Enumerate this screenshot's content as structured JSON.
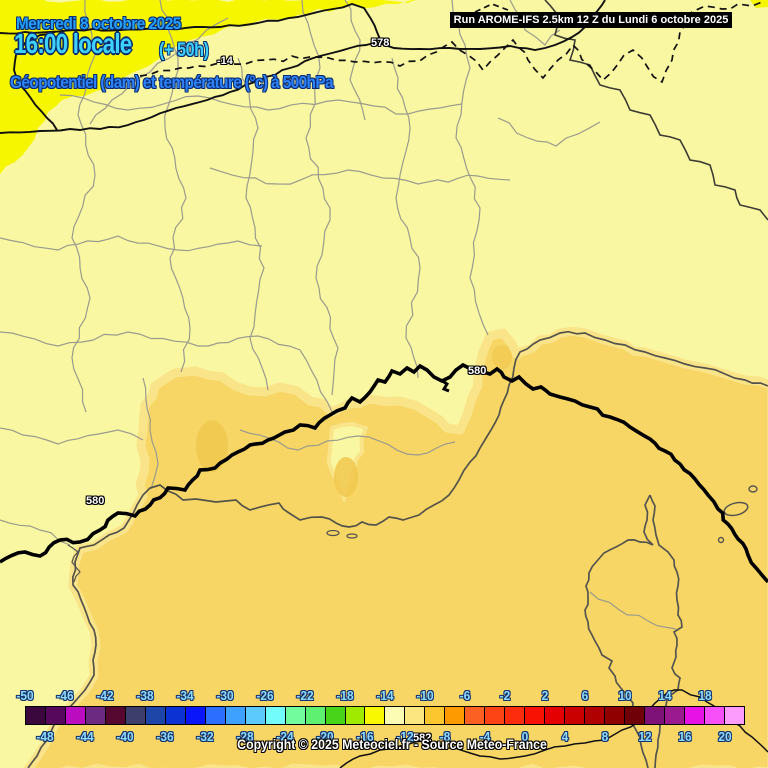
{
  "header": {
    "date": "Mercredi 8 octobre 2025",
    "time": "16:00 locale",
    "offset": "(+ 50h)",
    "subtitle": "Géopotentiel (dam) et température (°c) à 500hPa"
  },
  "run_box": {
    "text": "Run AROME-IFS 2.5km 12 Z du Lundi 6 octobre 2025"
  },
  "contour_labels": {
    "c578": "578",
    "c580_west": "580",
    "c580_east": "580",
    "c582": "582",
    "iso_minus14": "-14"
  },
  "colorbar": {
    "cells": [
      "#3a083c",
      "#55085c",
      "#bc0cc0",
      "#6c2b80",
      "#570830",
      "#3e3e6c",
      "#1e46a8",
      "#0c32d4",
      "#0a16fa",
      "#2c6eff",
      "#3ea0ff",
      "#5ccafc",
      "#72fcfc",
      "#72fc9e",
      "#5ef070",
      "#48d418",
      "#a0ea00",
      "#faf800",
      "#fcfcb4",
      "#fce680",
      "#fcc62e",
      "#fc9a00",
      "#fc6022",
      "#fc4414",
      "#fc2c0c",
      "#f81204",
      "#e40000",
      "#ca0000",
      "#b00000",
      "#900000",
      "#700008",
      "#7e1278",
      "#9c1a90",
      "#e612e6",
      "#f850f8",
      "#fc9cfc"
    ],
    "labels_top": [
      "-50",
      "-46",
      "-42",
      "-38",
      "-34",
      "-30",
      "-26",
      "-22",
      "-18",
      "-14",
      "-10",
      "-6",
      "-2",
      "2",
      "6",
      "10",
      "14",
      "18"
    ],
    "labels_bottom": [
      "-48",
      "-44",
      "-40",
      "-36",
      "-32",
      "-28",
      "-24",
      "-20",
      "-16",
      "-12",
      "-8",
      "-4",
      "0",
      "4",
      "8",
      "12",
      "16",
      "20"
    ]
  },
  "footer": {
    "copyright": "Copyright © 2025 Meteociel.fr - Source Meteo-France"
  },
  "map_colors": {
    "pale": "#f9f7a2",
    "bright": "#f6f600",
    "gold": "#f7d666",
    "gold_light": "#fae48a",
    "gold_deep": "#f0c84d"
  }
}
